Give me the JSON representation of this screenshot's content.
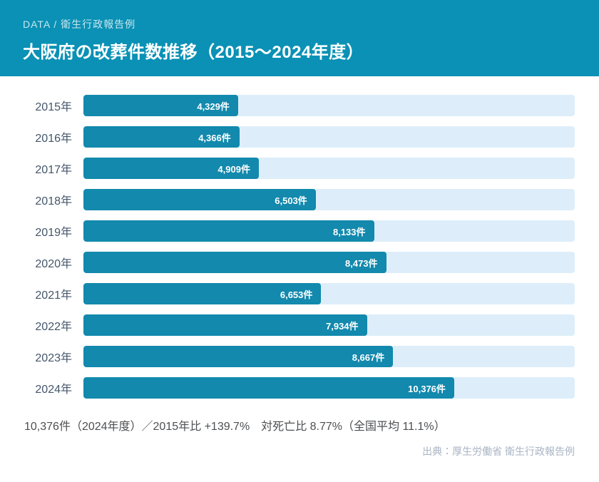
{
  "header": {
    "eyebrow": "DATA / 衛生行政報告例",
    "title": "大阪府の改葬件数推移（2015〜2024年度）"
  },
  "chart_data": {
    "type": "bar",
    "orientation": "horizontal",
    "title": "大阪府の改葬件数推移（2015〜2024年度）",
    "categories": [
      "2015年",
      "2016年",
      "2017年",
      "2018年",
      "2019年",
      "2020年",
      "2021年",
      "2022年",
      "2023年",
      "2024年"
    ],
    "values": [
      4329,
      4366,
      4909,
      6503,
      8133,
      8473,
      6653,
      7934,
      8667,
      10376
    ],
    "value_labels": [
      "4,329件",
      "4,366件",
      "4,909件",
      "6,503件",
      "8,133件",
      "8,473件",
      "6,653件",
      "7,934件",
      "8,667件",
      "10,376件"
    ],
    "unit": "件",
    "xlabel": "",
    "ylabel": "",
    "xlim": [
      0,
      13750
    ],
    "scale_max": 13750,
    "grid": false,
    "legend": false
  },
  "footer": {
    "summary": "10,376件（2024年度）／2015年比 +139.7%　対死亡比 8.77%（全国平均 11.1%）",
    "source": "出典：厚生労働省 衛生行政報告例"
  },
  "colors": {
    "header_bg": "#0a91b5",
    "bar": "#1289ad",
    "track": "#ddeefa",
    "year_label": "#44566b",
    "summary_text": "#4d4f52",
    "source_text": "#a9b4c4"
  }
}
